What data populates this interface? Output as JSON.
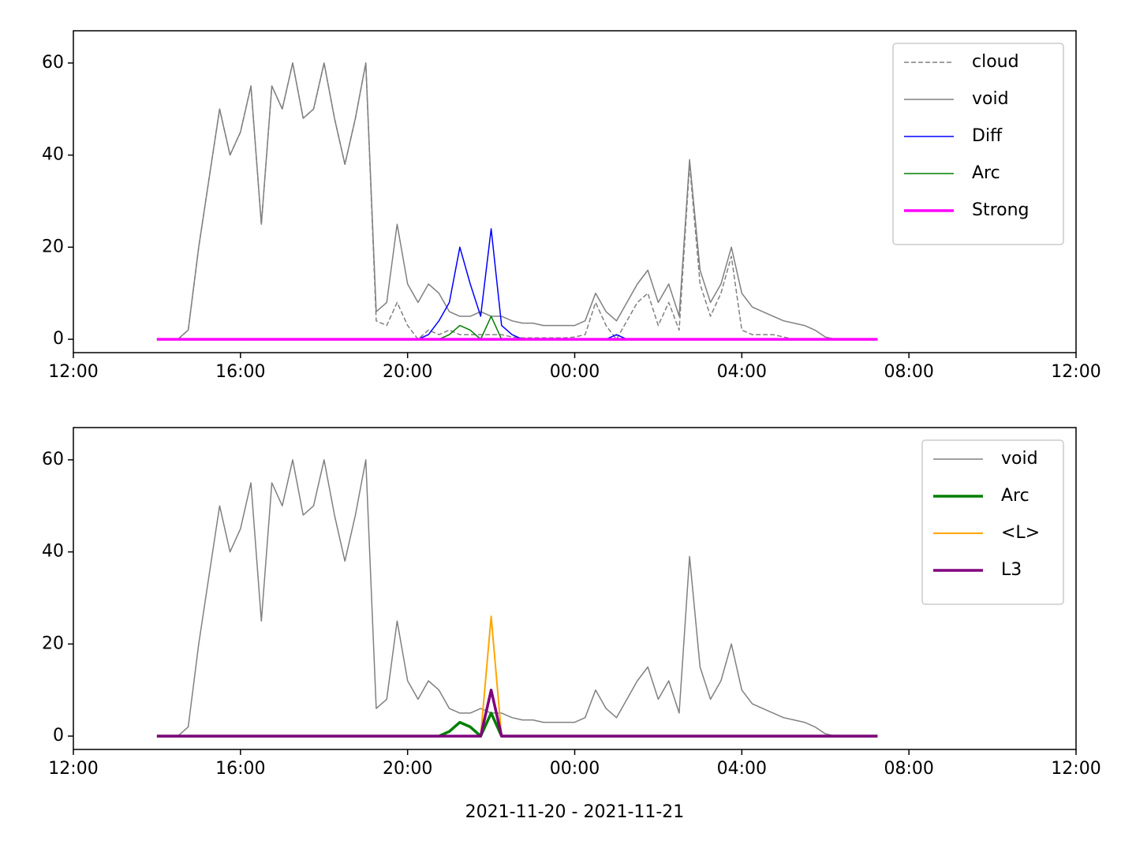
{
  "chart_data": [
    {
      "type": "line",
      "x": [
        14,
        14.25,
        14.5,
        14.75,
        15,
        15.25,
        15.5,
        15.75,
        16,
        16.25,
        16.5,
        16.75,
        17,
        17.25,
        17.5,
        17.75,
        18,
        18.25,
        18.5,
        18.75,
        19,
        19.25,
        19.5,
        19.75,
        20,
        20.25,
        20.5,
        20.75,
        21,
        21.25,
        21.5,
        21.75,
        22,
        22.25,
        22.5,
        22.75,
        23,
        23.25,
        23.5,
        23.75,
        24,
        24.25,
        24.5,
        24.75,
        25,
        25.25,
        25.5,
        25.75,
        26,
        26.25,
        26.5,
        26.75,
        27,
        27.25,
        27.5,
        27.75,
        28,
        28.25,
        28.5,
        28.75,
        29,
        29.25,
        29.5,
        29.75,
        30,
        30.25,
        30.5,
        30.75,
        31,
        31.25
      ],
      "xlim": [
        12,
        36
      ],
      "xticks": [
        {
          "value": 12,
          "label": "12:00"
        },
        {
          "value": 16,
          "label": "16:00"
        },
        {
          "value": 20,
          "label": "20:00"
        },
        {
          "value": 24,
          "label": "00:00"
        },
        {
          "value": 28,
          "label": "04:00"
        },
        {
          "value": 32,
          "label": "08:00"
        },
        {
          "value": 36,
          "label": "12:00"
        }
      ],
      "ylim": [
        -2.9,
        67
      ],
      "yticks": [
        0,
        20,
        40,
        60
      ],
      "legend": "upper right",
      "series": [
        {
          "name": "cloud",
          "color": "#808080",
          "dash": true,
          "width": 1.5,
          "values": [
            0,
            0,
            0,
            2,
            20,
            35,
            50,
            40,
            45,
            55,
            25,
            55,
            50,
            60,
            48,
            50,
            60,
            48,
            38,
            48,
            60,
            4,
            3,
            8,
            3,
            0,
            2,
            1,
            2,
            1,
            1,
            1,
            1,
            1,
            0.5,
            0.3,
            0.3,
            0.3,
            0.3,
            0.3,
            0.5,
            1,
            8,
            3,
            0,
            4,
            8,
            10,
            3,
            8,
            2,
            38,
            12,
            5,
            10,
            18,
            2,
            1,
            1,
            1,
            0.5,
            0,
            0,
            0,
            0,
            0,
            0,
            0,
            0,
            0
          ]
        },
        {
          "name": "void",
          "color": "#808080",
          "width": 1.5,
          "values": [
            0,
            0,
            0,
            2,
            20,
            35,
            50,
            40,
            45,
            55,
            25,
            55,
            50,
            60,
            48,
            50,
            60,
            48,
            38,
            48,
            60,
            6,
            8,
            25,
            12,
            8,
            12,
            10,
            6,
            5,
            5,
            6,
            5,
            5,
            4,
            3.5,
            3.5,
            3,
            3,
            3,
            3,
            4,
            10,
            6,
            4,
            8,
            12,
            15,
            8,
            12,
            5,
            39,
            15,
            8,
            12,
            20,
            10,
            7,
            6,
            5,
            4,
            3.5,
            3,
            2,
            0.5,
            0,
            0,
            0,
            0,
            0
          ]
        },
        {
          "name": "Diff",
          "color": "#0000ff",
          "width": 1.5,
          "values": [
            0,
            0,
            0,
            0,
            0,
            0,
            0,
            0,
            0,
            0,
            0,
            0,
            0,
            0,
            0,
            0,
            0,
            0,
            0,
            0,
            0,
            0,
            0,
            0,
            0,
            0,
            1,
            4,
            8,
            20,
            12,
            5,
            24,
            3,
            1,
            0,
            0,
            0,
            0,
            0,
            0,
            0,
            0,
            0,
            1,
            0,
            0,
            0,
            0,
            0,
            0,
            0,
            0,
            0,
            0,
            0,
            0,
            0,
            0,
            0,
            0,
            0,
            0,
            0,
            0,
            0,
            0,
            0,
            0,
            0
          ]
        },
        {
          "name": "Arc",
          "color": "#008000",
          "width": 1.5,
          "values": [
            0,
            0,
            0,
            0,
            0,
            0,
            0,
            0,
            0,
            0,
            0,
            0,
            0,
            0,
            0,
            0,
            0,
            0,
            0,
            0,
            0,
            0,
            0,
            0,
            0,
            0,
            0,
            0,
            1,
            3,
            2,
            0,
            5,
            0,
            0,
            0,
            0,
            0,
            0,
            0,
            0,
            0,
            0,
            0,
            0,
            0,
            0,
            0,
            0,
            0,
            0,
            0,
            0,
            0,
            0,
            0,
            0,
            0,
            0,
            0,
            0,
            0,
            0,
            0,
            0,
            0,
            0,
            0,
            0,
            0
          ]
        },
        {
          "name": "Strong",
          "color": "#ff00ff",
          "width": 3.5,
          "values": [
            0,
            0,
            0,
            0,
            0,
            0,
            0,
            0,
            0,
            0,
            0,
            0,
            0,
            0,
            0,
            0,
            0,
            0,
            0,
            0,
            0,
            0,
            0,
            0,
            0,
            0,
            0,
            0,
            0,
            0,
            0,
            0,
            0,
            0,
            0,
            0,
            0,
            0,
            0,
            0,
            0,
            0,
            0,
            0,
            0,
            0,
            0,
            0,
            0,
            0,
            0,
            0,
            0,
            0,
            0,
            0,
            0,
            0,
            0,
            0,
            0,
            0,
            0,
            0,
            0,
            0,
            0,
            0,
            0,
            0
          ]
        }
      ]
    },
    {
      "type": "line",
      "x_label": "2021-11-20 - 2021-11-21",
      "x": [
        14,
        14.25,
        14.5,
        14.75,
        15,
        15.25,
        15.5,
        15.75,
        16,
        16.25,
        16.5,
        16.75,
        17,
        17.25,
        17.5,
        17.75,
        18,
        18.25,
        18.5,
        18.75,
        19,
        19.25,
        19.5,
        19.75,
        20,
        20.25,
        20.5,
        20.75,
        21,
        21.25,
        21.5,
        21.75,
        22,
        22.25,
        22.5,
        22.75,
        23,
        23.25,
        23.5,
        23.75,
        24,
        24.25,
        24.5,
        24.75,
        25,
        25.25,
        25.5,
        25.75,
        26,
        26.25,
        26.5,
        26.75,
        27,
        27.25,
        27.5,
        27.75,
        28,
        28.25,
        28.5,
        28.75,
        29,
        29.25,
        29.5,
        29.75,
        30,
        30.25,
        30.5,
        30.75,
        31,
        31.25
      ],
      "xlim": [
        12,
        36
      ],
      "xticks": [
        {
          "value": 12,
          "label": "12:00"
        },
        {
          "value": 16,
          "label": "16:00"
        },
        {
          "value": 20,
          "label": "20:00"
        },
        {
          "value": 24,
          "label": "00:00"
        },
        {
          "value": 28,
          "label": "04:00"
        },
        {
          "value": 32,
          "label": "08:00"
        },
        {
          "value": 36,
          "label": "12:00"
        }
      ],
      "ylim": [
        -2.9,
        67
      ],
      "yticks": [
        0,
        20,
        40,
        60
      ],
      "legend": "upper right",
      "series": [
        {
          "name": "void",
          "color": "#808080",
          "width": 1.5,
          "values": [
            0,
            0,
            0,
            2,
            20,
            35,
            50,
            40,
            45,
            55,
            25,
            55,
            50,
            60,
            48,
            50,
            60,
            48,
            38,
            48,
            60,
            6,
            8,
            25,
            12,
            8,
            12,
            10,
            6,
            5,
            5,
            6,
            5,
            5,
            4,
            3.5,
            3.5,
            3,
            3,
            3,
            3,
            4,
            10,
            6,
            4,
            8,
            12,
            15,
            8,
            12,
            5,
            39,
            15,
            8,
            12,
            20,
            10,
            7,
            6,
            5,
            4,
            3.5,
            3,
            2,
            0.5,
            0,
            0,
            0,
            0,
            0
          ]
        },
        {
          "name": "Arc",
          "color": "#008000",
          "width": 3.5,
          "values": [
            0,
            0,
            0,
            0,
            0,
            0,
            0,
            0,
            0,
            0,
            0,
            0,
            0,
            0,
            0,
            0,
            0,
            0,
            0,
            0,
            0,
            0,
            0,
            0,
            0,
            0,
            0,
            0,
            1,
            3,
            2,
            0,
            5,
            0,
            0,
            0,
            0,
            0,
            0,
            0,
            0,
            0,
            0,
            0,
            0,
            0,
            0,
            0,
            0,
            0,
            0,
            0,
            0,
            0,
            0,
            0,
            0,
            0,
            0,
            0,
            0,
            0,
            0,
            0,
            0,
            0,
            0,
            0,
            0,
            0
          ]
        },
        {
          "name": "<L>",
          "color": "#ffa500",
          "width": 2,
          "values": [
            0,
            0,
            0,
            0,
            0,
            0,
            0,
            0,
            0,
            0,
            0,
            0,
            0,
            0,
            0,
            0,
            0,
            0,
            0,
            0,
            0,
            0,
            0,
            0,
            0,
            0,
            0,
            0,
            0,
            0,
            0,
            0,
            26,
            0,
            0,
            0,
            0,
            0,
            0,
            0,
            0,
            0,
            0,
            0,
            0,
            0,
            0,
            0,
            0,
            0,
            0,
            0,
            0,
            0,
            0,
            0,
            0,
            0,
            0,
            0,
            0,
            0,
            0,
            0,
            0,
            0,
            0,
            0,
            0,
            0
          ]
        },
        {
          "name": "L3",
          "color": "#800080",
          "width": 3.5,
          "values": [
            0,
            0,
            0,
            0,
            0,
            0,
            0,
            0,
            0,
            0,
            0,
            0,
            0,
            0,
            0,
            0,
            0,
            0,
            0,
            0,
            0,
            0,
            0,
            0,
            0,
            0,
            0,
            0,
            0,
            0,
            0,
            0,
            10,
            0,
            0,
            0,
            0,
            0,
            0,
            0,
            0,
            0,
            0,
            0,
            0,
            0,
            0,
            0,
            0,
            0,
            0,
            0,
            0,
            0,
            0,
            0,
            0,
            0,
            0,
            0,
            0,
            0,
            0,
            0,
            0,
            0,
            0,
            0,
            0,
            0
          ]
        }
      ]
    }
  ]
}
